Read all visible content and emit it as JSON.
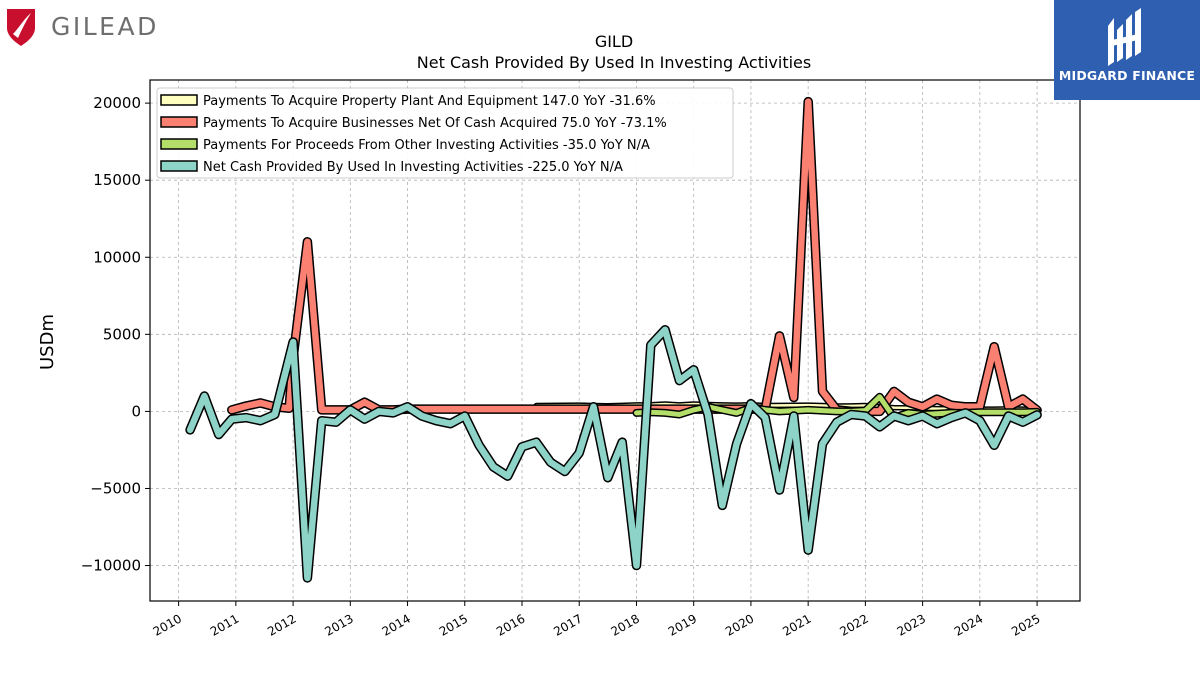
{
  "branding": {
    "company": "GILEAD",
    "publisher": "MIDGARD FINANCE"
  },
  "chart_data": {
    "type": "line",
    "title": "GILD",
    "subtitle": "Net Cash Provided By Used In Investing Activities",
    "ylabel": "USDm",
    "xlabel": "",
    "xlim": [
      2009.5,
      2025.75
    ],
    "ylim": [
      -12300,
      21500
    ],
    "yticks": [
      -10000,
      -5000,
      0,
      5000,
      10000,
      15000,
      20000
    ],
    "ytick_labels": [
      "−10000",
      "−5000",
      "0",
      "5000",
      "10000",
      "15000",
      "20000"
    ],
    "xticks": [
      2010,
      2011,
      2012,
      2013,
      2014,
      2015,
      2016,
      2017,
      2018,
      2019,
      2020,
      2021,
      2022,
      2023,
      2024,
      2025
    ],
    "xtick_labels": [
      "2010",
      "2011",
      "2012",
      "2013",
      "2014",
      "2015",
      "2016",
      "2017",
      "2018",
      "2019",
      "2020",
      "2021",
      "2022",
      "2023",
      "2024",
      "2025"
    ],
    "grid": true,
    "legend_position": "top-left",
    "series": [
      {
        "name": "Payments To Acquire Property Plant And Equipment",
        "legend": "Payments To Acquire Property Plant And Equipment  147.0 YoY -31.6%",
        "color": "#ffffbf",
        "width": "thin",
        "x": [
          2016.25,
          2016.5,
          2016.75,
          2017.0,
          2017.25,
          2017.5,
          2017.75,
          2018.0,
          2018.25,
          2018.5,
          2018.75,
          2019.0,
          2019.25,
          2019.5,
          2019.75,
          2020.0,
          2020.25,
          2020.5,
          2020.75,
          2021.0,
          2021.25,
          2021.5,
          2021.75,
          2022.0,
          2022.25,
          2022.5,
          2022.75,
          2023.0,
          2023.25,
          2023.5,
          2023.75,
          2024.0,
          2024.25,
          2024.5,
          2024.75,
          2025.0
        ],
        "y": [
          380,
          390,
          400,
          410,
          380,
          370,
          390,
          420,
          430,
          480,
          420,
          480,
          450,
          420,
          410,
          430,
          380,
          390,
          400,
          410,
          380,
          350,
          360,
          380,
          300,
          250,
          230,
          200,
          180,
          170,
          160,
          150,
          150,
          160,
          150,
          147
        ]
      },
      {
        "name": "Payments To Acquire Businesses Net Of Cash Acquired",
        "legend": "Payments To Acquire Businesses Net Of Cash Acquired  75.0 YoY -73.1%",
        "color": "#fa8072",
        "width": "thick",
        "x": [
          2010.93,
          2011.18,
          2011.43,
          2011.68,
          2011.93,
          2012.0,
          2012.25,
          2012.5,
          2012.75,
          2013.0,
          2013.25,
          2013.5,
          2013.75,
          2014.0,
          2015.0,
          2016.0,
          2017.0,
          2018.0,
          2019.0,
          2020.0,
          2020.25,
          2020.5,
          2020.75,
          2021.0,
          2021.25,
          2021.5,
          2021.75,
          2022.0,
          2022.25,
          2022.5,
          2022.75,
          2023.0,
          2023.25,
          2023.5,
          2023.75,
          2024.0,
          2024.25,
          2024.5,
          2024.75,
          2025.0
        ],
        "y": [
          100,
          350,
          550,
          300,
          200,
          3500,
          11000,
          100,
          100,
          100,
          600,
          100,
          100,
          150,
          150,
          150,
          150,
          150,
          150,
          150,
          150,
          4900,
          900,
          20100,
          1300,
          100,
          0,
          0,
          0,
          1300,
          600,
          300,
          800,
          400,
          300,
          300,
          4200,
          300,
          800,
          75
        ]
      },
      {
        "name": "Payments For Proceeds From Other Investing Activities",
        "legend": "Payments For Proceeds From Other Investing Activities  -35.0 YoY N/A",
        "color": "#b3de69",
        "width": "medium",
        "x": [
          2018.0,
          2018.25,
          2018.5,
          2018.75,
          2019.0,
          2019.25,
          2019.5,
          2019.75,
          2020.0,
          2020.25,
          2020.5,
          2020.75,
          2021.0,
          2021.25,
          2021.5,
          2021.75,
          2022.0,
          2022.25,
          2022.5,
          2022.75,
          2023.0,
          2023.25,
          2023.5,
          2023.75,
          2024.0,
          2024.25,
          2024.5,
          2024.75,
          2025.0
        ],
        "y": [
          -100,
          -50,
          -100,
          -200,
          100,
          300,
          100,
          -100,
          250,
          100,
          0,
          50,
          100,
          50,
          0,
          0,
          50,
          950,
          -400,
          -100,
          -200,
          -150,
          -100,
          -100,
          -50,
          -50,
          -50,
          -50,
          -35
        ]
      },
      {
        "name": "Net Cash Provided By Used In Investing Activities",
        "legend": "Net Cash Provided By Used In Investing Activities  -225.0 YoY N/A",
        "color": "#8dd3c7",
        "width": "thick",
        "x": [
          2010.2,
          2010.45,
          2010.7,
          2010.93,
          2011.18,
          2011.43,
          2011.68,
          2012.0,
          2012.25,
          2012.5,
          2012.75,
          2013.0,
          2013.25,
          2013.5,
          2013.75,
          2014.0,
          2014.25,
          2014.5,
          2014.75,
          2015.0,
          2015.25,
          2015.5,
          2015.75,
          2016.0,
          2016.25,
          2016.5,
          2016.75,
          2017.0,
          2017.25,
          2017.5,
          2017.75,
          2018.0,
          2018.25,
          2018.5,
          2018.75,
          2019.0,
          2019.25,
          2019.5,
          2019.75,
          2020.0,
          2020.25,
          2020.5,
          2020.75,
          2021.0,
          2021.25,
          2021.5,
          2021.75,
          2022.0,
          2022.25,
          2022.5,
          2022.75,
          2023.0,
          2023.25,
          2023.5,
          2023.75,
          2024.0,
          2024.25,
          2024.5,
          2024.75,
          2025.0
        ],
        "y": [
          -1200,
          1000,
          -1500,
          -500,
          -400,
          -600,
          -200,
          4500,
          -10800,
          -600,
          -700,
          100,
          -500,
          0,
          -100,
          300,
          -300,
          -600,
          -800,
          -300,
          -2200,
          -3600,
          -4200,
          -2300,
          -2000,
          -3300,
          -3900,
          -2700,
          300,
          -4300,
          -2000,
          -10000,
          4300,
          5300,
          2000,
          2700,
          -200,
          -6100,
          -2100,
          500,
          -400,
          -5100,
          -300,
          -9000,
          -2100,
          -700,
          -200,
          -300,
          -1000,
          -300,
          -600,
          -300,
          -800,
          -400,
          -100,
          -600,
          -2200,
          -300,
          -700,
          -225
        ]
      }
    ]
  }
}
